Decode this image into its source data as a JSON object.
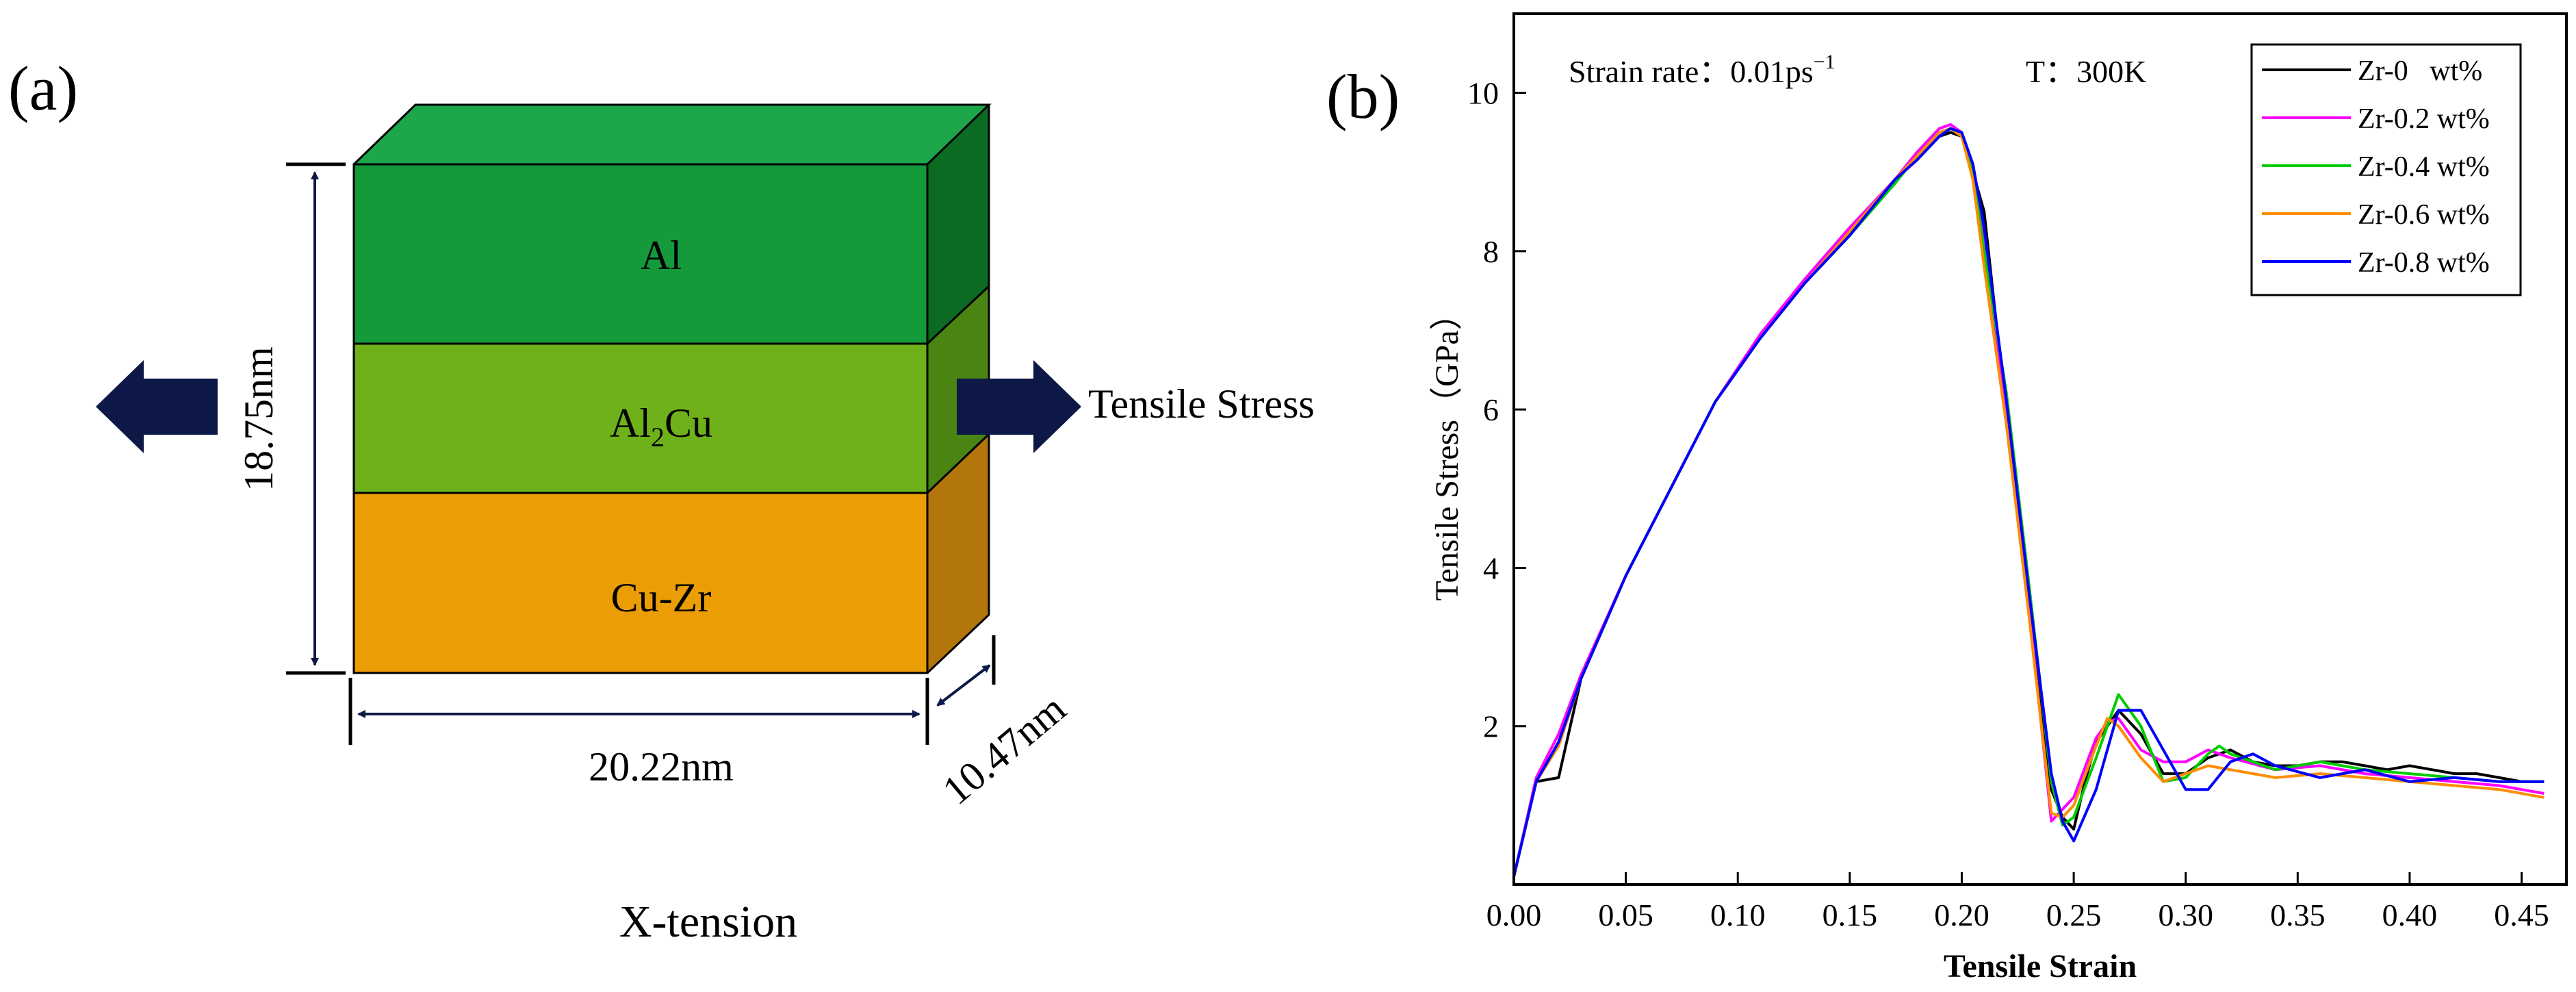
{
  "panel_a": {
    "label": "(a)",
    "layers": [
      {
        "name": "Al",
        "main": "Al",
        "sub": "",
        "rest": "",
        "front_color": "#149A3B",
        "top_color": "#1DA64A",
        "side_color": "#0B6B22"
      },
      {
        "name": "Al2Cu",
        "main": "Al",
        "sub": "2",
        "rest": "Cu",
        "front_color": "#6EB11A",
        "top_color": "#6EB11A",
        "side_color": "#4A8513"
      },
      {
        "name": "Cu-Zr",
        "main": "Cu-Zr",
        "sub": "",
        "rest": "",
        "front_color": "#EB9D05",
        "top_color": "#EB9D05",
        "side_color": "#B2760A"
      }
    ],
    "height_label": "18.75nm",
    "width_label": "20.22nm",
    "depth_label": "10.47nm",
    "stress_label": "Tensile Stress",
    "tension_label": "X-tension",
    "arrow_color": "#0D1846"
  },
  "panel_b": {
    "label": "(b)",
    "annotation_rate_prefix": "Strain rate：0.01ps",
    "annotation_rate_exp": "−1",
    "annotation_temp": "T：300K"
  },
  "chart_data": {
    "type": "line",
    "xlabel": "Tensile Strain",
    "ylabel": "Tensile Stress（GPa）",
    "xlim": [
      0.0,
      0.47
    ],
    "ylim": [
      0,
      11
    ],
    "xticks": [
      0.0,
      0.05,
      0.1,
      0.15,
      0.2,
      0.25,
      0.3,
      0.35,
      0.4,
      0.45
    ],
    "xtick_labels": [
      "0.00",
      "0.05",
      "0.10",
      "0.15",
      "0.20",
      "0.25",
      "0.30",
      "0.35",
      "0.40",
      "0.45"
    ],
    "yticks": [
      2,
      4,
      6,
      8,
      10
    ],
    "ytick_labels": [
      "2",
      "4",
      "6",
      "8",
      "10"
    ],
    "legend_position": "top-right",
    "series": [
      {
        "name": "Zr-0   wt%",
        "color": "#000000",
        "x": [
          0.0,
          0.01,
          0.02,
          0.03,
          0.05,
          0.07,
          0.09,
          0.11,
          0.13,
          0.15,
          0.17,
          0.18,
          0.19,
          0.195,
          0.2,
          0.205,
          0.21,
          0.215,
          0.22,
          0.23,
          0.24,
          0.245,
          0.25,
          0.255,
          0.26,
          0.27,
          0.28,
          0.29,
          0.3,
          0.31,
          0.32,
          0.33,
          0.34,
          0.35,
          0.36,
          0.37,
          0.38,
          0.39,
          0.4,
          0.41,
          0.42,
          0.43,
          0.44,
          0.45,
          0.46
        ],
        "y": [
          0.1,
          1.3,
          1.35,
          2.6,
          3.9,
          5.0,
          6.1,
          6.9,
          7.6,
          8.2,
          8.9,
          9.2,
          9.45,
          9.5,
          9.45,
          9.0,
          8.5,
          7.2,
          5.8,
          3.6,
          1.2,
          0.85,
          0.7,
          1.3,
          1.8,
          2.2,
          1.9,
          1.4,
          1.4,
          1.6,
          1.7,
          1.55,
          1.5,
          1.5,
          1.55,
          1.55,
          1.5,
          1.45,
          1.5,
          1.45,
          1.4,
          1.4,
          1.35,
          1.3,
          1.3
        ]
      },
      {
        "name": "Zr-0.2 wt%",
        "color": "#FF00FF",
        "x": [
          0.0,
          0.01,
          0.02,
          0.03,
          0.05,
          0.07,
          0.09,
          0.11,
          0.13,
          0.15,
          0.17,
          0.18,
          0.19,
          0.195,
          0.2,
          0.205,
          0.21,
          0.22,
          0.23,
          0.24,
          0.245,
          0.25,
          0.26,
          0.265,
          0.27,
          0.28,
          0.29,
          0.3,
          0.31,
          0.32,
          0.34,
          0.36,
          0.38,
          0.4,
          0.42,
          0.44,
          0.46
        ],
        "y": [
          0.1,
          1.35,
          1.9,
          2.65,
          3.9,
          5.0,
          6.1,
          6.95,
          7.65,
          8.3,
          8.9,
          9.25,
          9.55,
          9.6,
          9.5,
          9.0,
          8.1,
          6.0,
          3.5,
          0.8,
          0.95,
          1.1,
          1.85,
          2.05,
          2.1,
          1.7,
          1.55,
          1.55,
          1.7,
          1.6,
          1.45,
          1.5,
          1.4,
          1.35,
          1.3,
          1.25,
          1.15
        ]
      },
      {
        "name": "Zr-0.4 wt%",
        "color": "#00CC00",
        "x": [
          0.0,
          0.01,
          0.02,
          0.03,
          0.05,
          0.07,
          0.09,
          0.11,
          0.13,
          0.15,
          0.17,
          0.18,
          0.19,
          0.195,
          0.2,
          0.205,
          0.21,
          0.22,
          0.23,
          0.24,
          0.245,
          0.25,
          0.26,
          0.265,
          0.27,
          0.28,
          0.29,
          0.3,
          0.31,
          0.315,
          0.32,
          0.34,
          0.36,
          0.38,
          0.4,
          0.42,
          0.44,
          0.46
        ],
        "y": [
          0.1,
          1.3,
          1.8,
          2.6,
          3.9,
          5.0,
          6.1,
          6.9,
          7.6,
          8.2,
          8.85,
          9.2,
          9.5,
          9.55,
          9.5,
          9.0,
          8.0,
          6.2,
          3.8,
          1.3,
          0.75,
          0.85,
          1.6,
          2.0,
          2.4,
          2.0,
          1.3,
          1.35,
          1.65,
          1.75,
          1.65,
          1.45,
          1.55,
          1.45,
          1.4,
          1.35,
          1.3,
          1.3
        ]
      },
      {
        "name": "Zr-0.6 wt%",
        "color": "#FF8C00",
        "x": [
          0.0,
          0.01,
          0.02,
          0.03,
          0.05,
          0.07,
          0.09,
          0.11,
          0.13,
          0.15,
          0.17,
          0.18,
          0.19,
          0.195,
          0.2,
          0.205,
          0.21,
          0.22,
          0.23,
          0.24,
          0.245,
          0.25,
          0.26,
          0.265,
          0.27,
          0.28,
          0.29,
          0.3,
          0.31,
          0.32,
          0.34,
          0.36,
          0.38,
          0.4,
          0.42,
          0.44,
          0.46
        ],
        "y": [
          0.1,
          1.3,
          1.75,
          2.6,
          3.9,
          5.0,
          6.1,
          6.9,
          7.6,
          8.25,
          8.9,
          9.2,
          9.5,
          9.55,
          9.45,
          8.9,
          7.8,
          5.8,
          3.4,
          0.9,
          0.85,
          1.0,
          1.75,
          2.1,
          2.0,
          1.6,
          1.3,
          1.4,
          1.5,
          1.45,
          1.35,
          1.4,
          1.35,
          1.3,
          1.25,
          1.2,
          1.1
        ]
      },
      {
        "name": "Zr-0.8 wt%",
        "color": "#0000FF",
        "x": [
          0.0,
          0.01,
          0.02,
          0.03,
          0.05,
          0.07,
          0.09,
          0.11,
          0.13,
          0.15,
          0.17,
          0.18,
          0.19,
          0.195,
          0.2,
          0.205,
          0.21,
          0.22,
          0.23,
          0.24,
          0.245,
          0.25,
          0.26,
          0.27,
          0.275,
          0.28,
          0.29,
          0.3,
          0.31,
          0.32,
          0.33,
          0.34,
          0.36,
          0.38,
          0.4,
          0.42,
          0.44,
          0.46
        ],
        "y": [
          0.1,
          1.3,
          1.8,
          2.6,
          3.9,
          5.0,
          6.1,
          6.9,
          7.6,
          8.2,
          8.9,
          9.15,
          9.45,
          9.55,
          9.5,
          9.1,
          8.3,
          6.1,
          3.7,
          1.4,
          0.8,
          0.55,
          1.2,
          2.2,
          2.2,
          2.2,
          1.7,
          1.2,
          1.2,
          1.55,
          1.65,
          1.5,
          1.35,
          1.45,
          1.3,
          1.35,
          1.3,
          1.3
        ]
      }
    ]
  }
}
